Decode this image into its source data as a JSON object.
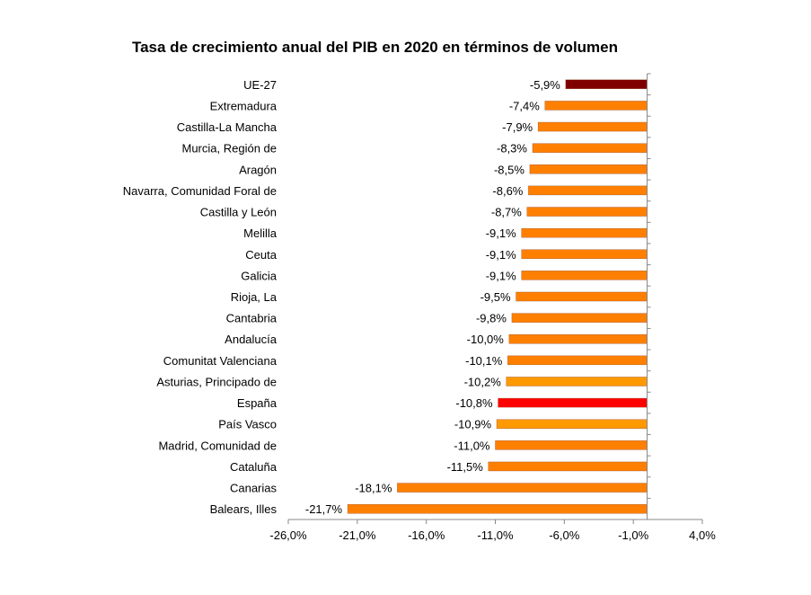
{
  "chart_data": {
    "type": "bar",
    "orientation": "horizontal",
    "title": "Tasa de crecimiento anual del PIB en 2020 en términos de volumen",
    "categories": [
      "UE-27",
      "Extremadura",
      "Castilla-La Mancha",
      "Murcia, Región de",
      "Aragón",
      "Navarra, Comunidad Foral de",
      "Castilla y León",
      "Melilla",
      "Ceuta",
      "Galicia",
      "Rioja, La",
      "Cantabria",
      "Andalucía",
      "Comunitat Valenciana",
      "Asturias, Principado de",
      "España",
      "País Vasco",
      "Madrid, Comunidad de",
      "Cataluña",
      "Canarias",
      "Balears, Illes"
    ],
    "values": [
      -5.9,
      -7.4,
      -7.9,
      -8.3,
      -8.5,
      -8.6,
      -8.7,
      -9.1,
      -9.1,
      -9.1,
      -9.5,
      -9.8,
      -10.0,
      -10.1,
      -10.2,
      -10.8,
      -10.9,
      -11.0,
      -11.5,
      -18.1,
      -21.7
    ],
    "data_labels": [
      "-5,9%",
      "-7,4%",
      "-7,9%",
      "-8,3%",
      "-8,5%",
      "-8,6%",
      "-8,7%",
      "-9,1%",
      "-9,1%",
      "-9,1%",
      "-9,5%",
      "-9,8%",
      "-10,0%",
      "-10,1%",
      "-10,2%",
      "-10,8%",
      "-10,9%",
      "-11,0%",
      "-11,5%",
      "-18,1%",
      "-21,7%"
    ],
    "colors": [
      "#800000",
      "#FF8000",
      "#FF8000",
      "#FF8000",
      "#FF8000",
      "#FF8000",
      "#FF8000",
      "#FF8000",
      "#FF8000",
      "#FF8000",
      "#FF8000",
      "#FF8000",
      "#FF8000",
      "#FF8000",
      "#FF9900",
      "#FF0000",
      "#FF9900",
      "#FF8000",
      "#FF8000",
      "#FF8000",
      "#FF8000"
    ],
    "xlim": [
      -26,
      4
    ],
    "xticks": [
      -26,
      -21,
      -16,
      -11,
      -6,
      -1,
      4
    ],
    "xtick_labels": [
      "-26,0%",
      "-21,0%",
      "-16,0%",
      "-11,0%",
      "-6,0%",
      "-1,0%",
      "4,0%"
    ],
    "grid": false,
    "xlabel": "",
    "ylabel": ""
  }
}
